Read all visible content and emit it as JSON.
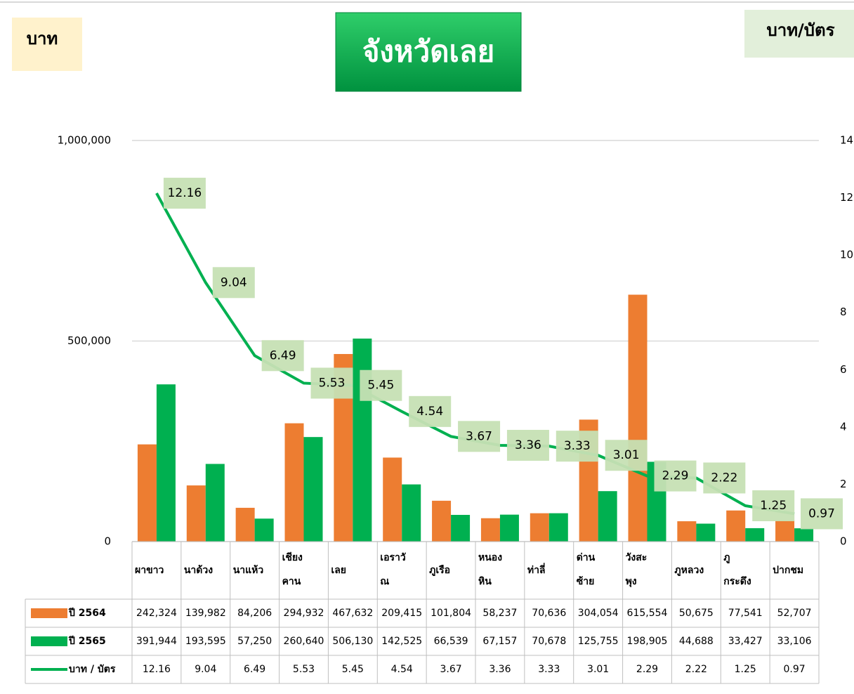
{
  "chart_data": {
    "type": "bar",
    "title": "จังหวัดเลย",
    "y_label": "บาท",
    "y2_label": "บาท/บัตร",
    "categories": [
      [
        "ผาขาว"
      ],
      [
        "นาด้วง"
      ],
      [
        "นาแห้ว"
      ],
      [
        "เชียง",
        "คาน"
      ],
      [
        "เลย"
      ],
      [
        "เอราวั",
        "ณ"
      ],
      [
        "ภูเรือ"
      ],
      [
        "หนอง",
        "หิน"
      ],
      [
        "ท่าลี่"
      ],
      [
        "ด่าน",
        "ซ้าย"
      ],
      [
        "วังสะ",
        "พุง"
      ],
      [
        "ภูหลวง"
      ],
      [
        "ภู",
        "กระดึง"
      ],
      [
        "ปากชม"
      ]
    ],
    "series": [
      {
        "name": "ปี 2564",
        "color": "#ed7d31",
        "type": "bar",
        "values": [
          242324,
          139982,
          84206,
          294932,
          467632,
          209415,
          101804,
          58237,
          70636,
          304054,
          615554,
          50675,
          77541,
          52707
        ],
        "value_labels": [
          "242,324",
          "139,982",
          "84,206",
          "294,932",
          "467,632",
          "209,415",
          "101,804",
          "58,237",
          "70,636",
          "304,054",
          "615,554",
          "50,675",
          "77,541",
          "52,707"
        ]
      },
      {
        "name": "ปี 2565",
        "color": "#00b050",
        "type": "bar",
        "values": [
          391944,
          193595,
          57250,
          260640,
          506130,
          142525,
          66539,
          67157,
          70678,
          125755,
          198905,
          44688,
          33427,
          33106
        ],
        "value_labels": [
          "391,944",
          "193,595",
          "57,250",
          "260,640",
          "506,130",
          "142,525",
          "66,539",
          "67,157",
          "70,678",
          "125,755",
          "198,905",
          "44,688",
          "33,427",
          "33,106"
        ]
      },
      {
        "name": "บาท / บัตร",
        "color": "#00b050",
        "type": "line",
        "axis": "y2",
        "values": [
          12.16,
          9.04,
          6.49,
          5.53,
          5.45,
          4.54,
          3.67,
          3.36,
          3.33,
          3.01,
          2.29,
          2.22,
          1.25,
          0.97
        ]
      }
    ],
    "ylim": [
      0,
      1000000
    ],
    "yticks": [
      0,
      {
        "value": 500000,
        "label": "500,000"
      },
      {
        "value": 1000000,
        "label": "1,000,000"
      }
    ],
    "y2lim": [
      0,
      14
    ],
    "y2ticks": [
      0,
      2,
      4,
      6,
      8,
      10,
      12,
      14
    ],
    "grid": true
  }
}
